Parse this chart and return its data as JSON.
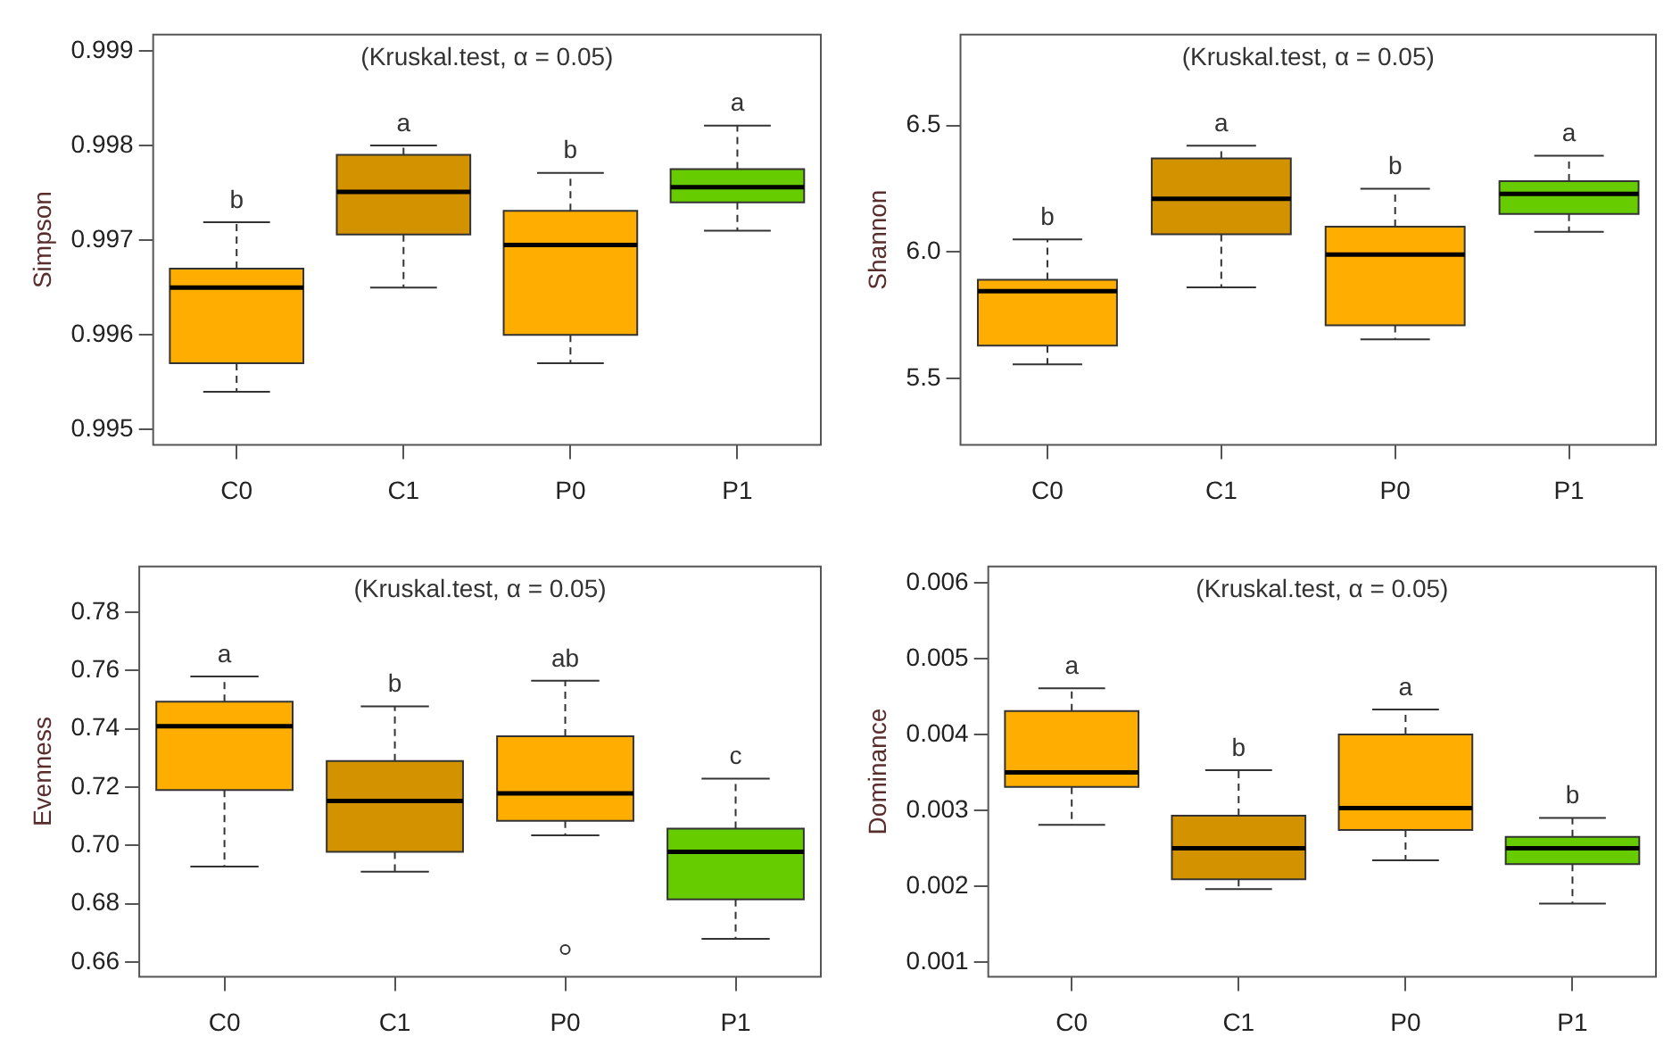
{
  "chart_data": [
    {
      "type": "box",
      "ylabel": "Simpson",
      "categories": [
        "C0",
        "C1",
        "P0",
        "P1"
      ],
      "colors": [
        "#ffae00",
        "#d39300",
        "#ffae00",
        "#66cc00"
      ],
      "boxes": [
        {
          "low": 0.9954,
          "q1": 0.9957,
          "median": 0.9965,
          "q3": 0.9967,
          "high": 0.99719
        },
        {
          "low": 0.9965,
          "q1": 0.99706,
          "median": 0.99751,
          "q3": 0.9979,
          "high": 0.998
        },
        {
          "low": 0.9957,
          "q1": 0.996,
          "median": 0.99695,
          "q3": 0.99731,
          "high": 0.99771
        },
        {
          "low": 0.9971,
          "q1": 0.9974,
          "median": 0.99756,
          "q3": 0.99775,
          "high": 0.99821
        }
      ],
      "ylim": [
        0.99484,
        0.99917
      ],
      "yticks": [
        0.995,
        0.996,
        0.997,
        0.998,
        0.999
      ],
      "annotations": [
        "(Kruskal.test, α = 0.05)",
        {
          "text": "b",
          "x": "C0",
          "y": 0.99719
        },
        {
          "text": "a",
          "x": "C1",
          "y": 0.998
        },
        {
          "text": "b",
          "x": "P0",
          "y": 0.99771
        },
        {
          "text": "a",
          "x": "P1",
          "y": 0.99821
        }
      ]
    },
    {
      "type": "box",
      "ylabel": "Shannon",
      "categories": [
        "C0",
        "C1",
        "P0",
        "P1"
      ],
      "colors": [
        "#ffae00",
        "#d39300",
        "#ffae00",
        "#66cc00"
      ],
      "boxes": [
        {
          "low": 5.556,
          "q1": 5.63,
          "median": 5.845,
          "q3": 5.89,
          "high": 6.05
        },
        {
          "low": 5.86,
          "q1": 6.07,
          "median": 6.21,
          "q3": 6.37,
          "high": 6.42
        },
        {
          "low": 5.655,
          "q1": 5.71,
          "median": 5.99,
          "q3": 6.1,
          "high": 6.25
        },
        {
          "low": 6.08,
          "q1": 6.15,
          "median": 6.23,
          "q3": 6.28,
          "high": 6.38
        }
      ],
      "ylim": [
        5.238,
        6.859
      ],
      "yticks": [
        {
          "value": 5.5,
          "label": "5.5"
        },
        {
          "value": 6,
          "label": "6.0"
        },
        {
          "value": 6.5,
          "label": "6.5"
        }
      ],
      "annotations": [
        "(Kruskal.test, α = 0.05)",
        {
          "text": "b",
          "x": "C0",
          "y": 6.05
        },
        {
          "text": "a",
          "x": "C1",
          "y": 6.42
        },
        {
          "text": "b",
          "x": "P0",
          "y": 6.25
        },
        {
          "text": "a",
          "x": "P1",
          "y": 6.38
        }
      ]
    },
    {
      "type": "box",
      "ylabel": "Evenness",
      "categories": [
        "C0",
        "C1",
        "P0",
        "P1"
      ],
      "colors": [
        "#ffae00",
        "#d39300",
        "#ffae00",
        "#66cc00"
      ],
      "boxes": [
        {
          "low": 0.6928,
          "q1": 0.719,
          "median": 0.7409,
          "q3": 0.7493,
          "high": 0.758
        },
        {
          "low": 0.691,
          "q1": 0.6978,
          "median": 0.7153,
          "q3": 0.729,
          "high": 0.7477
        },
        {
          "low": 0.7035,
          "q1": 0.7085,
          "median": 0.7179,
          "q3": 0.7375,
          "high": 0.7565,
          "outliers": [
            0.6643
          ]
        },
        {
          "low": 0.668,
          "q1": 0.6815,
          "median": 0.6978,
          "q3": 0.7058,
          "high": 0.7229
        }
      ],
      "ylim": [
        0.655,
        0.7957
      ],
      "yticks": [
        {
          "value": 0.66,
          "label": "0.66"
        },
        {
          "value": 0.68,
          "label": "0.68"
        },
        {
          "value": 0.7,
          "label": "0.70"
        },
        {
          "value": 0.72,
          "label": "0.72"
        },
        {
          "value": 0.74,
          "label": "0.74"
        },
        {
          "value": 0.76,
          "label": "0.76"
        },
        {
          "value": 0.78,
          "label": "0.78"
        }
      ],
      "annotations": [
        "(Kruskal.test, α = 0.05)",
        {
          "text": "a",
          "x": "C0",
          "y": 0.758
        },
        {
          "text": "b",
          "x": "C1",
          "y": 0.7477
        },
        {
          "text": "ab",
          "x": "P0",
          "y": 0.7565
        },
        {
          "text": "c",
          "x": "P1",
          "y": 0.7229
        }
      ]
    },
    {
      "type": "box",
      "ylabel": "Dominance",
      "categories": [
        "C0",
        "C1",
        "P0",
        "P1"
      ],
      "colors": [
        "#ffae00",
        "#d39300",
        "#ffae00",
        "#66cc00"
      ],
      "boxes": [
        {
          "low": 0.00281,
          "q1": 0.00331,
          "median": 0.0035,
          "q3": 0.00431,
          "high": 0.00461
        },
        {
          "low": 0.00196,
          "q1": 0.00209,
          "median": 0.0025,
          "q3": 0.00293,
          "high": 0.00353
        },
        {
          "low": 0.00234,
          "q1": 0.00274,
          "median": 0.00303,
          "q3": 0.004,
          "high": 0.00433
        },
        {
          "low": 0.00177,
          "q1": 0.00229,
          "median": 0.0025,
          "q3": 0.00265,
          "high": 0.0029
        }
      ],
      "ylim": [
        0.000806,
        0.006216
      ],
      "yticks": [
        0.001,
        0.002,
        0.003,
        0.004,
        0.005,
        0.006
      ],
      "annotations": [
        "(Kruskal.test, α = 0.05)",
        {
          "text": "a",
          "x": "C0",
          "y": 0.00461
        },
        {
          "text": "b",
          "x": "C1",
          "y": 0.00353
        },
        {
          "text": "a",
          "x": "P0",
          "y": 0.00433
        },
        {
          "text": "b",
          "x": "P1",
          "y": 0.0029
        }
      ]
    }
  ]
}
